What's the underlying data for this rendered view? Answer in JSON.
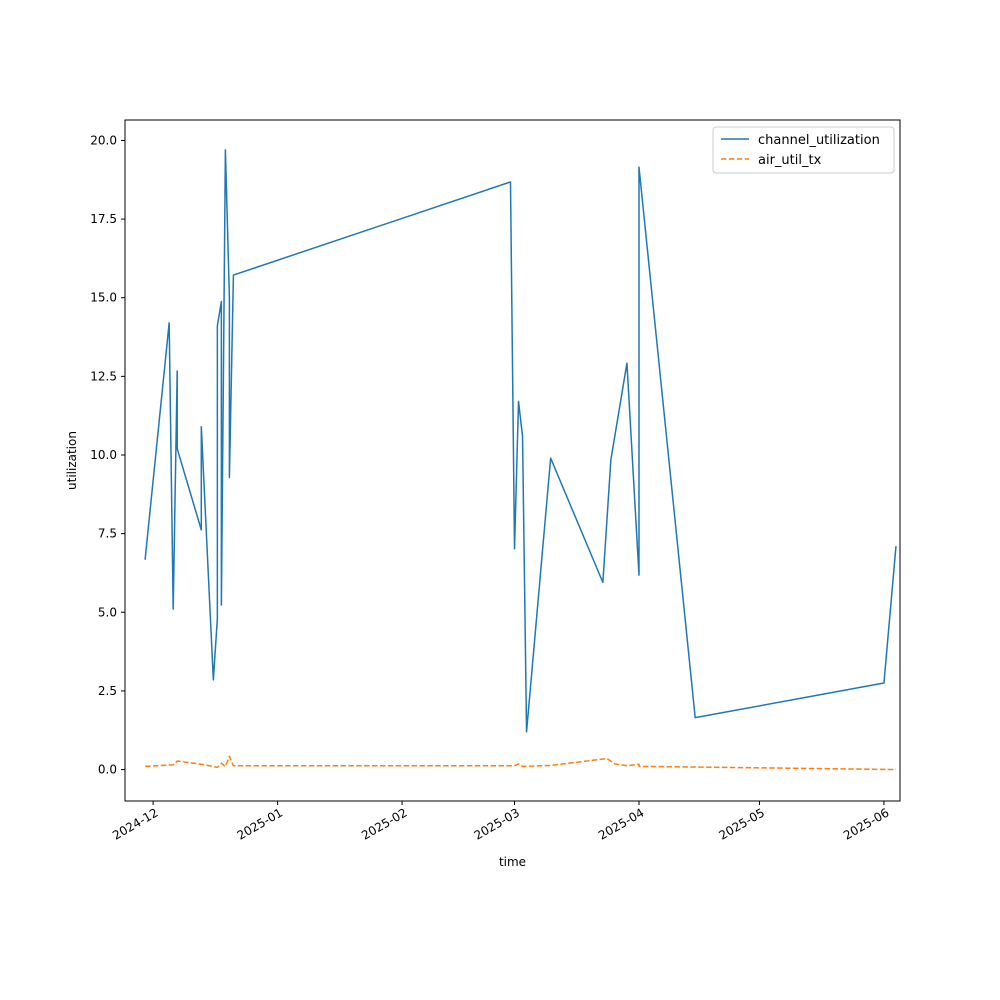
{
  "chart_data": {
    "type": "line",
    "xlabel": "time",
    "ylabel": "utilization",
    "x_axis_kind": "date",
    "xlim": [
      "2024-11-24",
      "2025-06-05"
    ],
    "ylim": [
      -1.0,
      20.65
    ],
    "x_ticks": [
      {
        "date": "2024-12-01",
        "label": "2024-12"
      },
      {
        "date": "2025-01-01",
        "label": "2025-01"
      },
      {
        "date": "2025-02-01",
        "label": "2025-02"
      },
      {
        "date": "2025-03-01",
        "label": "2025-03"
      },
      {
        "date": "2025-04-01",
        "label": "2025-04"
      },
      {
        "date": "2025-05-01",
        "label": "2025-05"
      },
      {
        "date": "2025-06-01",
        "label": "2025-06"
      }
    ],
    "y_ticks": [
      {
        "value": 0,
        "label": "0.0"
      },
      {
        "value": 2.5,
        "label": "2.5"
      },
      {
        "value": 5,
        "label": "5.0"
      },
      {
        "value": 7.5,
        "label": "7.5"
      },
      {
        "value": 10,
        "label": "10.0"
      },
      {
        "value": 12.5,
        "label": "12.5"
      },
      {
        "value": 15,
        "label": "15.0"
      },
      {
        "value": 17.5,
        "label": "17.5"
      },
      {
        "value": 20,
        "label": "20.0"
      }
    ],
    "grid": false,
    "legend_position": "top-right",
    "series": [
      {
        "name": "channel_utilization",
        "color": "#1f77b4",
        "dash": "solid",
        "points": [
          {
            "x": "2024-11-29",
            "y": 6.67
          },
          {
            "x": "2024-12-05",
            "y": 14.2
          },
          {
            "x": "2024-12-06",
            "y": 5.1
          },
          {
            "x": "2024-12-07",
            "y": 12.67
          },
          {
            "x": "2024-12-07",
            "y": 10.2
          },
          {
            "x": "2024-12-13",
            "y": 7.62
          },
          {
            "x": "2024-12-13",
            "y": 10.9
          },
          {
            "x": "2024-12-16",
            "y": 2.85
          },
          {
            "x": "2024-12-17",
            "y": 4.8
          },
          {
            "x": "2024-12-17",
            "y": 14.1
          },
          {
            "x": "2024-12-18",
            "y": 14.88
          },
          {
            "x": "2024-12-18",
            "y": 5.23
          },
          {
            "x": "2024-12-19",
            "y": 19.7
          },
          {
            "x": "2024-12-20",
            "y": 15.0
          },
          {
            "x": "2024-12-20",
            "y": 9.28
          },
          {
            "x": "2024-12-21",
            "y": 15.72
          },
          {
            "x": "2025-02-28",
            "y": 18.68
          },
          {
            "x": "2025-03-01",
            "y": 7.02
          },
          {
            "x": "2025-03-02",
            "y": 11.7
          },
          {
            "x": "2025-03-03",
            "y": 10.6
          },
          {
            "x": "2025-03-04",
            "y": 1.2
          },
          {
            "x": "2025-03-08",
            "y": 7.0
          },
          {
            "x": "2025-03-10",
            "y": 9.9
          },
          {
            "x": "2025-03-23",
            "y": 5.95
          },
          {
            "x": "2025-03-25",
            "y": 9.85
          },
          {
            "x": "2025-03-29",
            "y": 12.92
          },
          {
            "x": "2025-04-01",
            "y": 6.18
          },
          {
            "x": "2025-04-01",
            "y": 19.15
          },
          {
            "x": "2025-04-15",
            "y": 1.65
          },
          {
            "x": "2025-06-01",
            "y": 2.75
          },
          {
            "x": "2025-06-04",
            "y": 7.1
          }
        ]
      },
      {
        "name": "air_util_tx",
        "color": "#ff7f0e",
        "dash": "dashed",
        "points": [
          {
            "x": "2024-11-29",
            "y": 0.1
          },
          {
            "x": "2024-12-06",
            "y": 0.15
          },
          {
            "x": "2024-12-07",
            "y": 0.27
          },
          {
            "x": "2024-12-13",
            "y": 0.17
          },
          {
            "x": "2024-12-17",
            "y": 0.07
          },
          {
            "x": "2024-12-18",
            "y": 0.2
          },
          {
            "x": "2024-12-19",
            "y": 0.1
          },
          {
            "x": "2024-12-20",
            "y": 0.42
          },
          {
            "x": "2024-12-21",
            "y": 0.12
          },
          {
            "x": "2025-03-01",
            "y": 0.12
          },
          {
            "x": "2025-03-02",
            "y": 0.18
          },
          {
            "x": "2025-03-03",
            "y": 0.1
          },
          {
            "x": "2025-03-10",
            "y": 0.13
          },
          {
            "x": "2025-03-24",
            "y": 0.35
          },
          {
            "x": "2025-03-26",
            "y": 0.18
          },
          {
            "x": "2025-03-29",
            "y": 0.12
          },
          {
            "x": "2025-04-01",
            "y": 0.17
          },
          {
            "x": "2025-04-01",
            "y": 0.1
          },
          {
            "x": "2025-04-15",
            "y": 0.08
          },
          {
            "x": "2025-06-04",
            "y": 0.0
          }
        ]
      }
    ]
  }
}
